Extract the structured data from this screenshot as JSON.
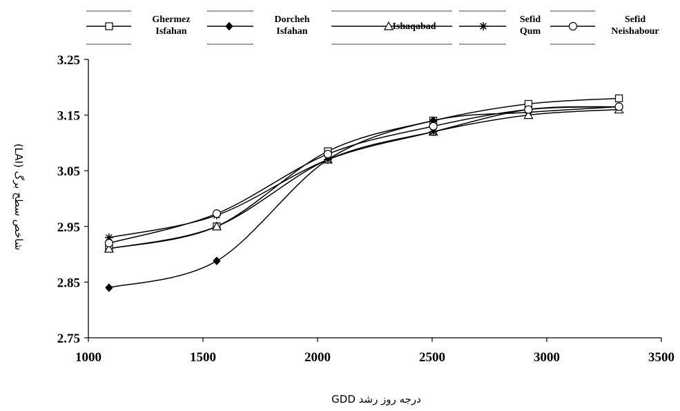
{
  "chart_data": {
    "type": "line",
    "xlabel": "درجه روز رشد GDD",
    "ylabel": "شاخص سطح برگ (LAI)",
    "xlim": [
      1000,
      3500
    ],
    "ylim": [
      2.75,
      3.25
    ],
    "x_ticks": [
      "1000",
      "1500",
      "2000",
      "2500",
      "3000",
      "3500"
    ],
    "y_ticks": [
      "3.25",
      "3.15",
      "3.05",
      "2.95",
      "2.85",
      "2.75"
    ],
    "x_tick_values": [
      1000,
      1500,
      2000,
      2500,
      3000,
      3500
    ],
    "y_tick_values": [
      3.25,
      3.15,
      3.05,
      2.95,
      2.85,
      2.75
    ],
    "grid": false,
    "legend_position": "top",
    "x": [
      1090,
      1560,
      2045,
      2505,
      2920,
      3315
    ],
    "series": [
      {
        "name_lines": [
          "Ghermez",
          "Isfahan"
        ],
        "marker": "square",
        "values": [
          2.91,
          2.95,
          3.085,
          3.14,
          3.17,
          3.18
        ]
      },
      {
        "name_lines": [
          "Dorcheh",
          "Isfahan"
        ],
        "marker": "diamond",
        "values": [
          2.84,
          2.888,
          3.07,
          3.14,
          3.155,
          3.165
        ]
      },
      {
        "name_lines": [
          "Ishaqabad"
        ],
        "marker": "triangle",
        "values": [
          2.91,
          2.95,
          3.07,
          3.12,
          3.15,
          3.16
        ]
      },
      {
        "name_lines": [
          "Sefid",
          "Qum"
        ],
        "marker": "star",
        "values": [
          2.93,
          2.97,
          3.07,
          3.12,
          3.16,
          3.165
        ]
      },
      {
        "name_lines": [
          "Sefid",
          "Neishabour"
        ],
        "marker": "circle",
        "values": [
          2.92,
          2.973,
          3.08,
          3.13,
          3.16,
          3.165
        ]
      }
    ]
  }
}
